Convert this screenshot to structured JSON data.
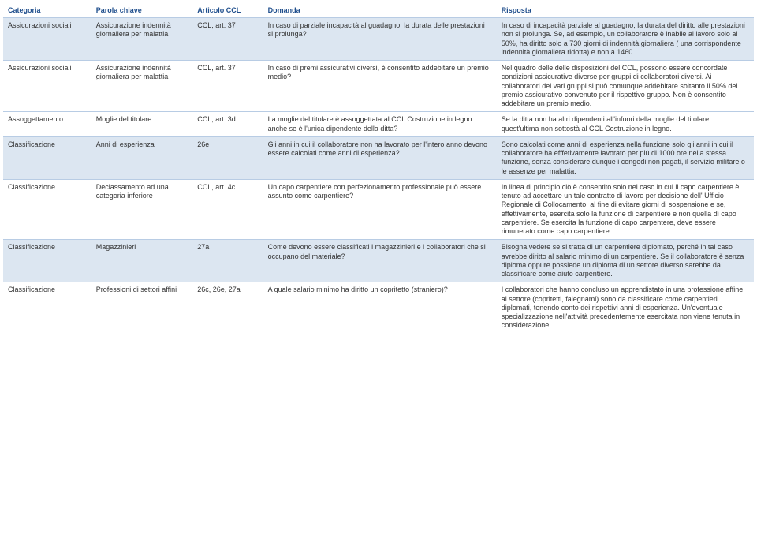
{
  "headers": {
    "c1": "Categoria",
    "c2": "Parola chiave",
    "c3": "Articolo CCL",
    "c4": "Domanda",
    "c5": "Risposta"
  },
  "rows": [
    {
      "c1": "Assicurazioni sociali",
      "c2": "Assicurazione indennità giornaliera per malattia",
      "c3": "CCL, art. 37",
      "c4": "In caso di parziale incapacità al guadagno, la durata delle prestazioni si prolunga?",
      "c5": "In caso di incapacità parziale al guadagno, la durata del diritto alle prestazioni non si prolunga. Se, ad esempio, un collaboratore è inabile al lavoro solo al 50%, ha diritto solo a 730 giorni di indennità giornaliera ( una corrispondente indennità giornaliera ridotta) e non a 1460."
    },
    {
      "c1": "Assicurazioni sociali",
      "c2": "Assicurazione indennità giornaliera per malattia",
      "c3": "CCL, art. 37",
      "c4": "In caso di premi assicurativi diversi, è consentito addebitare un premio medio?",
      "c5": "Nel quadro delle delle disposizioni del CCL, possono essere concordate condizioni assicurative diverse per gruppi di collaboratori diversi. Ai collaboratori dei vari gruppi si può comunque addebitare soltanto il  50% del premio assicurativo convenuto per il rispettivo gruppo. Non è consentito addebitare un premio medio."
    },
    {
      "c1": "Assoggettamento",
      "c2": "Moglie del titolare",
      "c3": "CCL, art. 3d",
      "c4": "La moglie del titolare è assoggettata al CCL Costruzione in legno anche se è l'unica dipendente della ditta?",
      "c5": "Se la ditta non ha altri dipendenti all'infuori della moglie del titolare, quest'ultima non sottostà al CCL Costruzione in legno."
    },
    {
      "c1": "Classificazione",
      "c2": "Anni di esperienza",
      "c3": "26e",
      "c4": "Gli anni in cui il collaboratore non ha lavorato per l'intero anno devono essere calcolati come anni di esperienza?",
      "c5": "Sono calcolati come anni di esperienza  nella funzione solo gli anni in cui il collaboratore ha efffetivamente lavorato  per più di 1000 ore nella stessa funzione, senza considerare dunque i congedi non pagati, il servizio militare o le assenze per malattia."
    },
    {
      "c1": "Classificazione",
      "c2": "Declassamento ad una categoria inferiore",
      "c3": "CCL, art. 4c",
      "c4": "Un capo carpentiere con perfezionamento professionale può essere assunto come carpentiere?",
      "c5": "In linea di principio ciò è consentito solo nel caso in cui il capo carpentiere è tenuto ad accettare un tale contratto di lavoro per decisione dell' Ufficio Regionale di Collocamento, al fine di evitare giorni di sospensione e se, effettivamente, esercita solo la funzione di carpentiere e non quella di capo carpentiere. Se esercita la funzione di capo carpentere, deve essere rimunerato come capo carpentiere."
    },
    {
      "c1": "Classificazione",
      "c2": "Magazzinieri",
      "c3": "27a",
      "c4": "Come devono essere classificati i magazzinieri e i collaboratori che si occupano del materiale?",
      "c5": "Bisogna vedere se si tratta di un carpentiere diplomato, perché in tal caso avrebbe diritto al salario minimo di un carpentiere. Se il collaboratore è senza diploma oppure possiede un diploma di un settore diverso sarebbe da classificare come aiuto carpentiere."
    },
    {
      "c1": "Classificazione",
      "c2": "Professioni di settori affini",
      "c3": "26c,  26e, 27a",
      "c4": "A quale salario minimo ha diritto un copritetto (straniero)?",
      "c5": "I collaboratori che hanno concluso un apprendistato in una professione affine al settore (copritetti, falegnami) sono da classificare come carpentieri diplomati, tenendo conto dei rispettivi anni di esperienza. Un'eventuale specializzazione nell'attività precedentemente esercitata non viene tenuta in considerazione."
    }
  ],
  "banding": [
    "band",
    "white",
    "white",
    "band",
    "white",
    "band",
    "white"
  ]
}
